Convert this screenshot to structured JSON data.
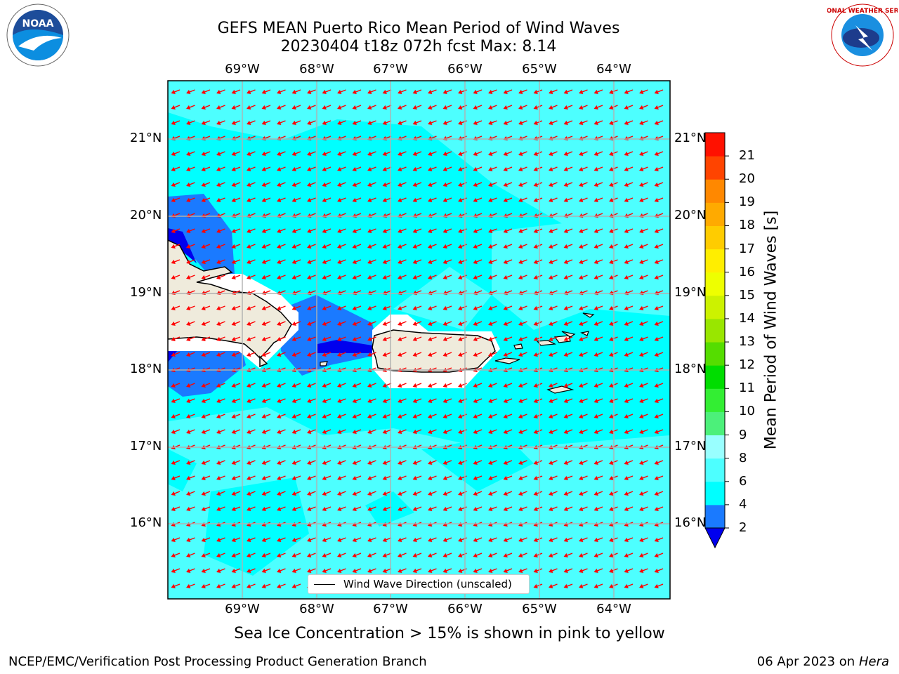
{
  "header": {
    "title_line1": "GEFS MEAN Puerto Rico Mean Period of Wind Waves",
    "title_line2": "20230404 t18z 072h fcst   Max: 8.14"
  },
  "map": {
    "lon_labels": [
      "69°W",
      "68°W",
      "67°W",
      "66°W",
      "65°W",
      "64°W"
    ],
    "lat_labels": [
      "21°N",
      "20°N",
      "19°N",
      "18°N",
      "17°N",
      "16°N"
    ],
    "legend_label": "Wind Wave Direction (unscaled)",
    "ocean_color": "#00ffff",
    "light_color": "#4dffff",
    "blue_color": "#1a7aff",
    "land_color": "#efebdc",
    "arrow_color": "#ff0000"
  },
  "colorbar": {
    "label": "Mean Period of Wind Waves [s]",
    "ticks": [
      "2",
      "4",
      "6",
      "8",
      "9",
      "10",
      "11",
      "12",
      "13",
      "14",
      "15",
      "16",
      "17",
      "18",
      "19",
      "20",
      "21"
    ],
    "colors": [
      "#1a7aff",
      "#00ffff",
      "#4dffff",
      "#99ffff",
      "#4cf07a",
      "#33ee33",
      "#00dd00",
      "#55dd00",
      "#99e600",
      "#ccf200",
      "#eeff00",
      "#ffee00",
      "#ffcc00",
      "#ffaa00",
      "#ff8800",
      "#ff4400",
      "#ff1100"
    ],
    "extend_color": "#0000ee"
  },
  "caption": "Sea Ice Concentration > 15% is shown in pink to yellow",
  "footer": {
    "left": "NCEP/EMC/Verification Post Processing Product Generation Branch",
    "right_date": "06 Apr 2023 on",
    "right_host": "Hera"
  },
  "logos": {
    "left": "NOAA",
    "right": "NATIONAL WEATHER SERVICE"
  }
}
